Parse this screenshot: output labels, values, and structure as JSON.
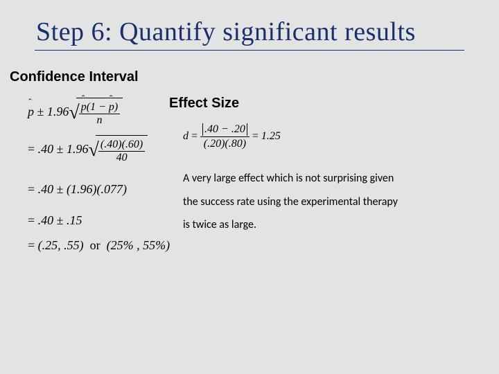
{
  "title": "Step 6: Quantify significant results",
  "labels": {
    "confidence_interval": "Confidence Interval",
    "effect_size": "Effect Size"
  },
  "ci": {
    "z": "1.96",
    "p_hat": ".40",
    "q_hat": ".60",
    "n": "40",
    "se": ".077",
    "margin": ".15",
    "lower": ".25",
    "upper": ".55",
    "lower_pct": "25%",
    "upper_pct": "55%"
  },
  "es": {
    "d": "d",
    "diff_num1": ".40",
    "diff_num2": ".20",
    "denom1": ".20",
    "denom2": ".80",
    "result": "1.25",
    "explain1": "A very large effect which is not surprising given",
    "explain2": "the success rate using the experimental therapy",
    "explain3": "is twice as large."
  },
  "colors": {
    "background": "#e2e4e3",
    "title": "#1a2f6e",
    "text": "#000000"
  }
}
